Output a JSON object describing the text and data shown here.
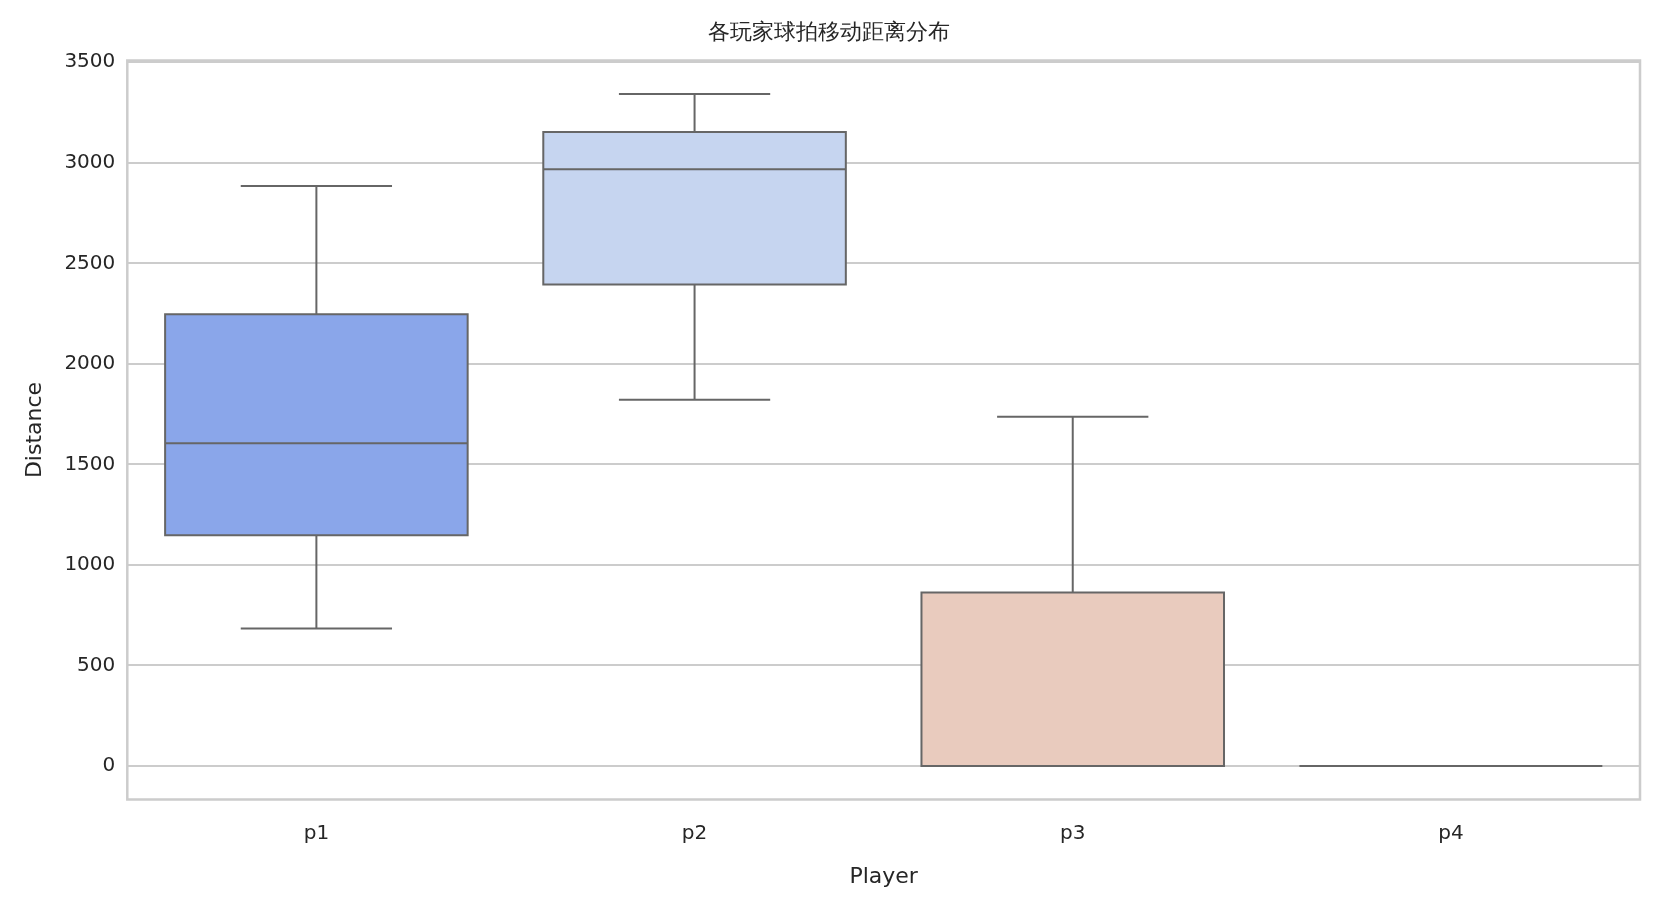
{
  "chart_data": {
    "type": "box",
    "title": "各玩家球拍移动距离分布",
    "xlabel": "Player",
    "ylabel": "Distance",
    "categories": [
      "p1",
      "p2",
      "p3",
      "p4"
    ],
    "boxes": [
      {
        "low": 684,
        "q1": 1147,
        "median": 1605,
        "q3": 2247,
        "high": 2884
      },
      {
        "low": 1821,
        "q1": 2395,
        "median": 2968,
        "q3": 3153,
        "high": 3342
      },
      {
        "low": 0,
        "q1": 0,
        "median": 0,
        "q3": 863,
        "high": 1737
      },
      {
        "low": 0,
        "q1": 0,
        "median": 0,
        "q3": 0,
        "high": 0
      }
    ],
    "colors": [
      "#8aa6ea",
      "#c6d5f0",
      "#e9cbbe",
      "#666666"
    ],
    "ylim": [
      -167,
      3509
    ],
    "yticks": [
      0,
      500,
      1000,
      1500,
      2000,
      2500,
      3000,
      3500
    ],
    "grid": "y",
    "legend": false
  }
}
